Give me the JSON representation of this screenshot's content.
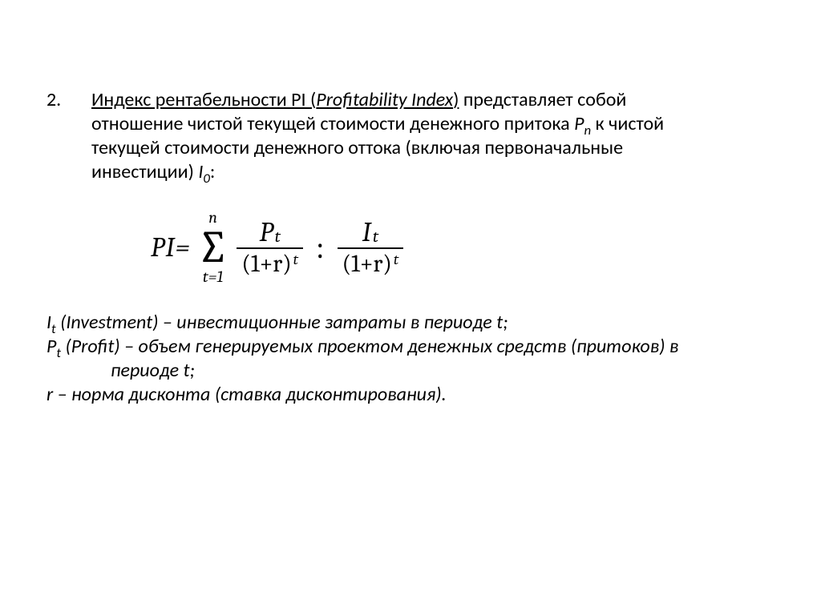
{
  "item_number": "2.",
  "intro": {
    "lead_u": "Индекс рентабельности PI (",
    "lead_u_it": "Profitability Index",
    "lead_u_close": ")",
    "rest1": " представляет собой",
    "line2a": "отношение чистой текущей стоимости денежного притока ",
    "Pn": "P",
    "Pn_sub": "n",
    "line2b": " к чистой",
    "line3": "текущей стоимости денежного оттока (включая первоначальные",
    "line4a": "инвестиции) ",
    "I0": "I",
    "I0_sub": "0",
    "line4b": ":"
  },
  "formula": {
    "pi": "PI",
    "eq": "=",
    "sigma_top": "n",
    "sigma_bot": "t=1",
    "f1_num_base": "P",
    "f1_num_sub": "t",
    "f1_den": "(1+r)",
    "f1_den_sup": "t",
    "colon": ":",
    "f2_num_base": "I",
    "f2_num_sub": "t",
    "f2_den": "(1+r)",
    "f2_den_sup": "t"
  },
  "defs": {
    "l1a": "I",
    "l1a_sub": "t",
    "l1b": " (Investment) – инвестиционные затраты в периоде t;",
    "l2a": "P",
    "l2a_sub": "t",
    "l2b": " (Profit) – объем генерируемых проектом денежных средств (притоков) в",
    "l2c": "периоде t;",
    "l3": "r – норма дисконта (ставка дисконтирования)."
  },
  "colors": {
    "text": "#000000",
    "background": "#ffffff"
  }
}
